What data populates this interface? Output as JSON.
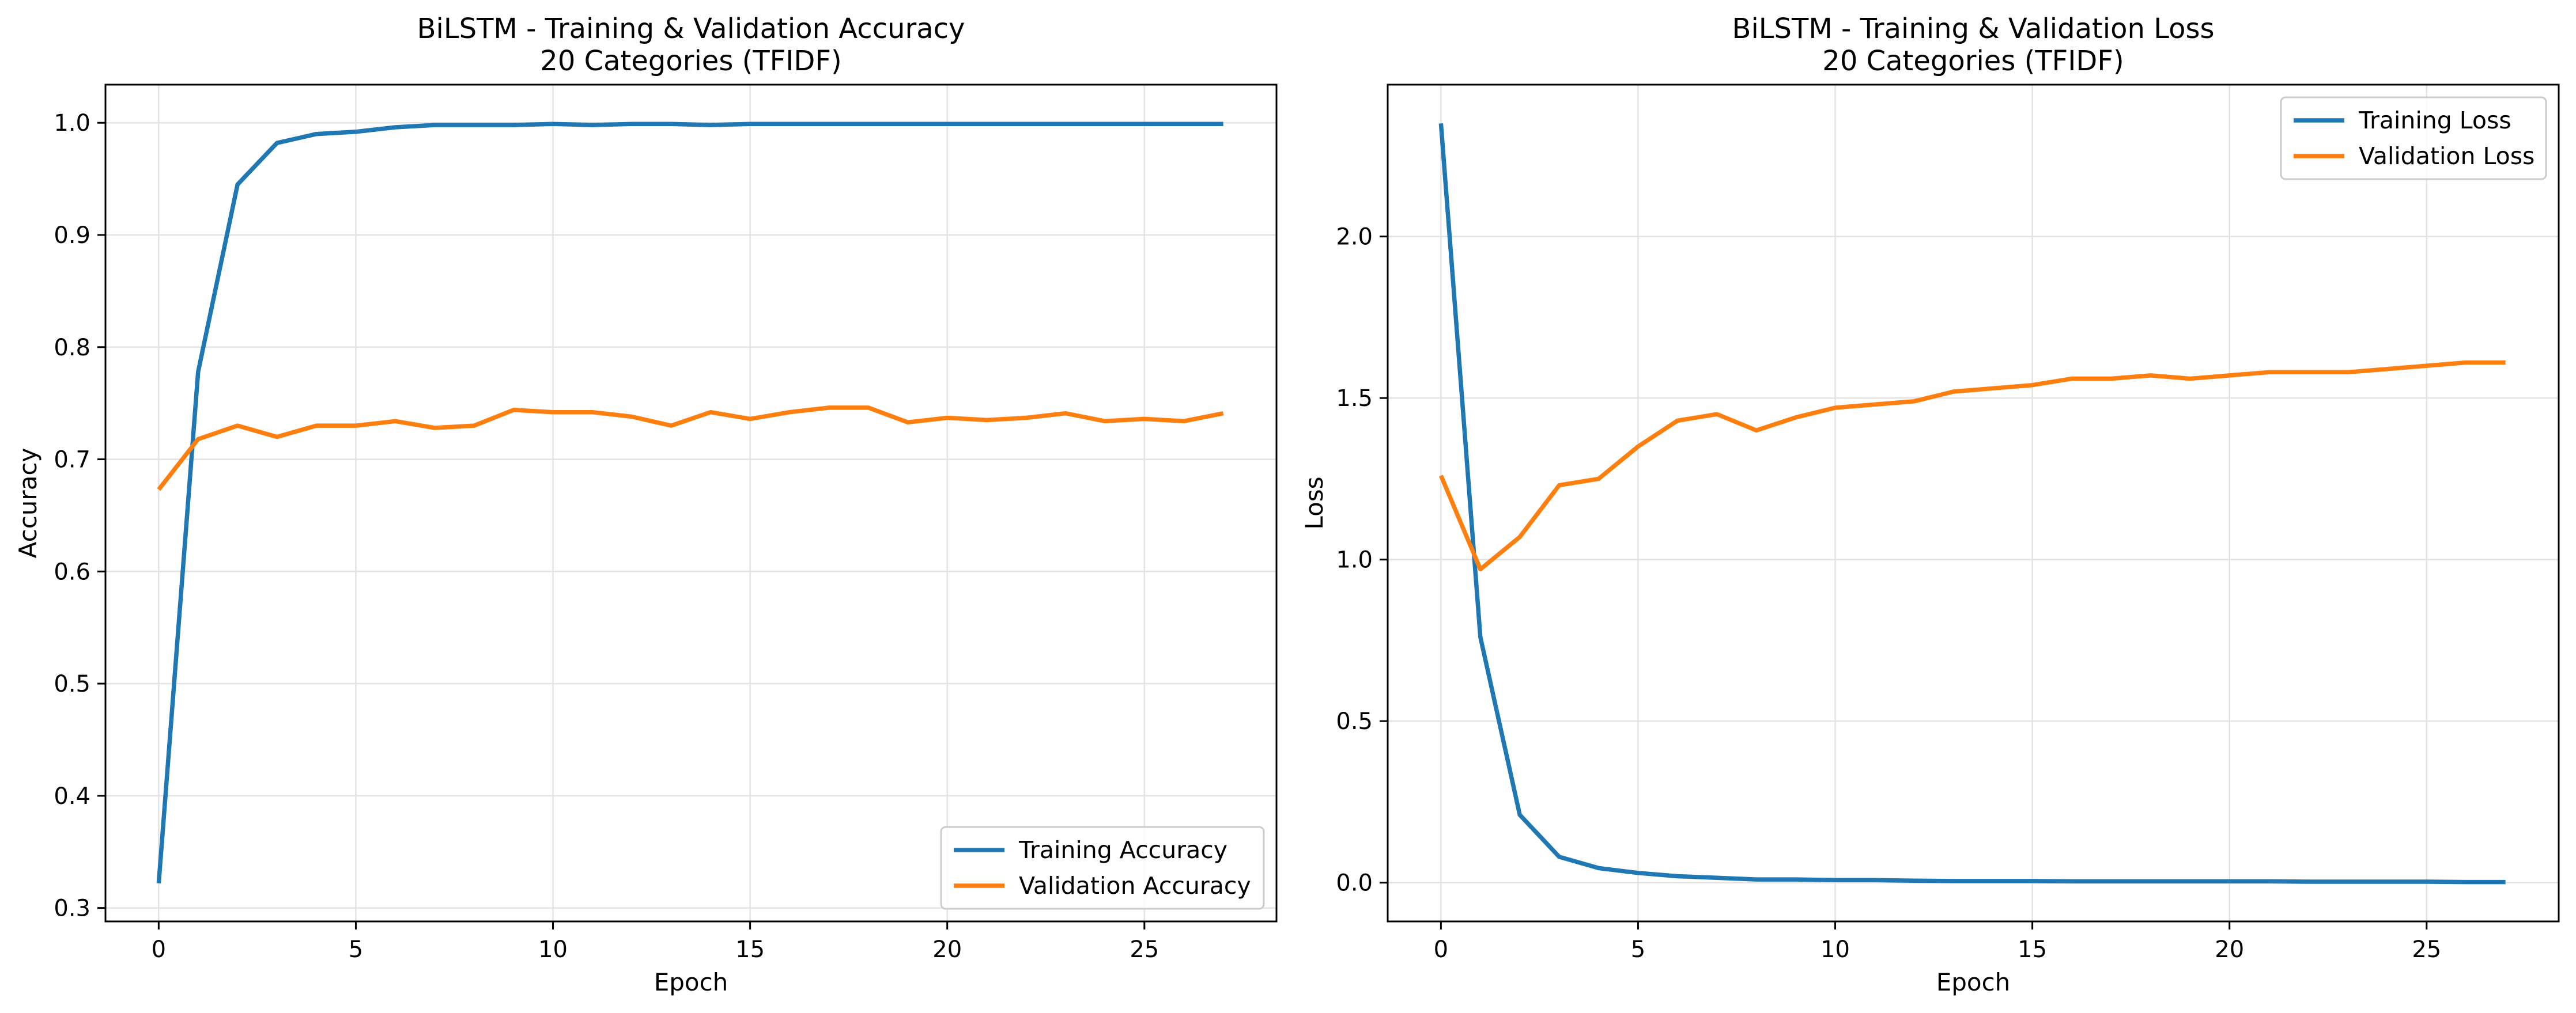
{
  "chart_data": [
    {
      "type": "line",
      "title": "BiLSTM - Training & Validation Accuracy",
      "subtitle": "20 Categories (TFIDF)",
      "xlabel": "Epoch",
      "ylabel": "Accuracy",
      "xlim": [
        -1.35,
        28.35
      ],
      "ylim": [
        0.288,
        1.034
      ],
      "xticks": [
        0,
        5,
        10,
        15,
        20,
        25
      ],
      "yticks": [
        0.3,
        0.4,
        0.5,
        0.6,
        0.7,
        0.8,
        0.9,
        1.0
      ],
      "ytick_labels": [
        "0.3",
        "0.4",
        "0.5",
        "0.6",
        "0.7",
        "0.8",
        "0.9",
        "1.0"
      ],
      "grid": true,
      "legend_position": "lower-right",
      "x": [
        0,
        1,
        2,
        3,
        4,
        5,
        6,
        7,
        8,
        9,
        10,
        11,
        12,
        13,
        14,
        15,
        16,
        17,
        18,
        19,
        20,
        21,
        22,
        23,
        24,
        25,
        26,
        27
      ],
      "series": [
        {
          "name": "Training Accuracy",
          "color": "#1f77b4",
          "values": [
            0.322,
            0.778,
            0.945,
            0.982,
            0.99,
            0.992,
            0.996,
            0.998,
            0.998,
            0.998,
            0.999,
            0.998,
            0.999,
            0.999,
            0.998,
            0.999,
            0.999,
            0.999,
            0.999,
            0.999,
            0.999,
            0.999,
            0.999,
            0.999,
            0.999,
            0.999,
            0.999,
            0.999
          ]
        },
        {
          "name": "Validation Accuracy",
          "color": "#ff7f0e",
          "values": [
            0.673,
            0.718,
            0.73,
            0.72,
            0.73,
            0.73,
            0.734,
            0.728,
            0.73,
            0.744,
            0.742,
            0.742,
            0.738,
            0.73,
            0.742,
            0.736,
            0.742,
            0.746,
            0.746,
            0.733,
            0.737,
            0.735,
            0.737,
            0.741,
            0.734,
            0.736,
            0.734,
            0.741
          ]
        }
      ]
    },
    {
      "type": "line",
      "title": "BiLSTM - Training & Validation Loss",
      "subtitle": "20 Categories (TFIDF)",
      "xlabel": "Epoch",
      "ylabel": "Loss",
      "xlim": [
        -1.35,
        28.35
      ],
      "ylim": [
        -0.12,
        2.47
      ],
      "xticks": [
        0,
        5,
        10,
        15,
        20,
        25
      ],
      "yticks": [
        0.0,
        0.5,
        1.0,
        1.5,
        2.0
      ],
      "ytick_labels": [
        "0.0",
        "0.5",
        "1.0",
        "1.5",
        "2.0"
      ],
      "grid": true,
      "legend_position": "upper-right",
      "x": [
        0,
        1,
        2,
        3,
        4,
        5,
        6,
        7,
        8,
        9,
        10,
        11,
        12,
        13,
        14,
        15,
        16,
        17,
        18,
        19,
        20,
        21,
        22,
        23,
        24,
        25,
        26,
        27
      ],
      "series": [
        {
          "name": "Training Loss",
          "color": "#1f77b4",
          "values": [
            2.35,
            0.76,
            0.21,
            0.08,
            0.045,
            0.03,
            0.02,
            0.015,
            0.01,
            0.01,
            0.008,
            0.008,
            0.006,
            0.005,
            0.005,
            0.005,
            0.004,
            0.004,
            0.004,
            0.004,
            0.004,
            0.004,
            0.003,
            0.003,
            0.003,
            0.003,
            0.002,
            0.002
          ]
        },
        {
          "name": "Validation Loss",
          "color": "#ff7f0e",
          "values": [
            1.26,
            0.97,
            1.07,
            1.23,
            1.25,
            1.35,
            1.43,
            1.45,
            1.4,
            1.44,
            1.47,
            1.48,
            1.49,
            1.52,
            1.53,
            1.54,
            1.56,
            1.56,
            1.57,
            1.56,
            1.57,
            1.58,
            1.58,
            1.58,
            1.59,
            1.6,
            1.61,
            1.61
          ]
        }
      ]
    }
  ]
}
